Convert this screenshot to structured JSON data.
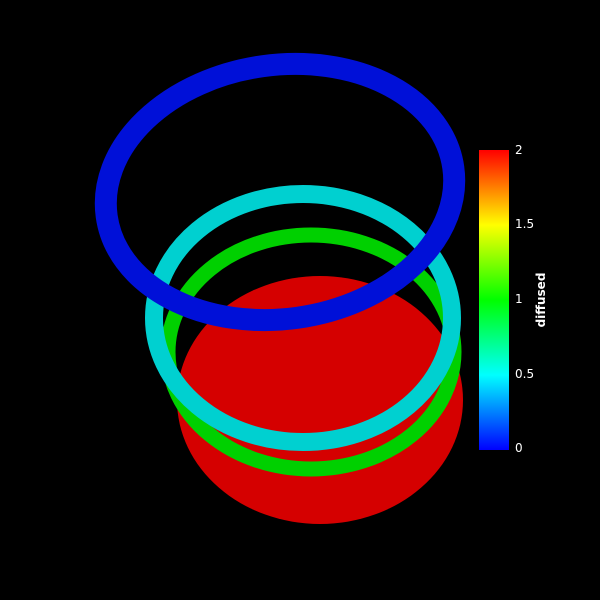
{
  "scene": {
    "background": "#000000",
    "disk_color": "#d50000",
    "ring_green_color": "#00d000",
    "ring_cyan_color": "#00d0d0",
    "ring_blue_color": "#0010d8"
  },
  "legend": {
    "title": "diffused",
    "ticks": [
      {
        "label": "2",
        "value": 2
      },
      {
        "label": "1.5",
        "value": 1.5
      },
      {
        "label": "1",
        "value": 1
      },
      {
        "label": "0.5",
        "value": 0.5
      },
      {
        "label": "0",
        "value": 0
      }
    ],
    "range": [
      0,
      2
    ],
    "stops": [
      "#ff0000",
      "#ffff00",
      "#00ff00",
      "#00ffff",
      "#0000ff"
    ]
  }
}
